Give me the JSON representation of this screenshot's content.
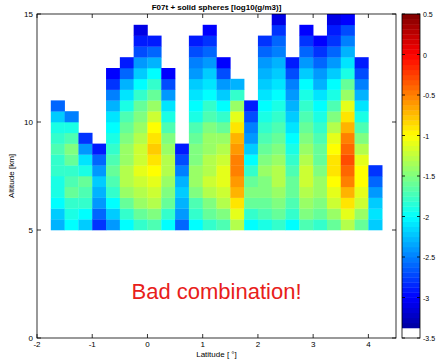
{
  "chart_data": {
    "type": "heatmap",
    "title": "F07t + solid spheres [log10(g/m3)]",
    "xlabel": "Latitude [ °]",
    "ylabel": "Altitude [km]",
    "xlim": [
      -2,
      4.5
    ],
    "ylim": [
      0,
      15
    ],
    "xticks": [
      -2,
      -1,
      0,
      1,
      2,
      3,
      4
    ],
    "yticks": [
      0,
      5,
      10,
      15
    ],
    "colorbar": {
      "lim": [
        -3.5,
        0.5
      ],
      "ticks": [
        0.5,
        0,
        -0.5,
        -1,
        -1.5,
        -2,
        -2.5,
        -3,
        -3.5
      ]
    },
    "annotations": [
      {
        "text": "Bad combination!"
      }
    ],
    "x": [
      -1.625,
      -1.375,
      -1.125,
      -0.875,
      -0.625,
      -0.375,
      -0.125,
      0.125,
      0.375,
      0.625,
      0.875,
      1.125,
      1.375,
      1.625,
      1.875,
      2.125,
      2.375,
      2.625,
      2.875,
      3.125,
      3.375,
      3.625,
      3.875,
      4.125
    ],
    "y": [
      5.25,
      5.75,
      6.25,
      6.75,
      7.25,
      7.75,
      8.25,
      8.75,
      9.25,
      9.75,
      10.25,
      10.75,
      11.25,
      11.75,
      12.25,
      12.75,
      13.25,
      13.75,
      14.25,
      14.75
    ],
    "z": [
      [
        -2.3,
        -2.2,
        -2.0,
        -1.9,
        -1.9,
        -1.8,
        -1.8,
        -1.7,
        -1.8,
        -1.9,
        -2.2,
        -2.6,
        null,
        null,
        null,
        null,
        null,
        null,
        null,
        null
      ],
      [
        -2.0,
        -1.9,
        -1.8,
        -1.6,
        -1.7,
        -1.8,
        -1.6,
        -1.5,
        -1.7,
        -1.9,
        -2.5,
        null,
        null,
        null,
        null,
        null,
        null,
        null,
        null,
        null
      ],
      [
        -2.2,
        -2.0,
        -1.8,
        -1.7,
        -1.6,
        -1.9,
        -2.1,
        -2.4,
        -2.8,
        null,
        null,
        null,
        null,
        null,
        null,
        null,
        null,
        null,
        null,
        null
      ],
      [
        -2.8,
        -2.6,
        -2.4,
        -2.3,
        -2.2,
        -2.4,
        -2.6,
        -2.9,
        null,
        null,
        null,
        null,
        null,
        null,
        null,
        null,
        null,
        null,
        null,
        null
      ],
      [
        -2.4,
        -2.2,
        -2.0,
        -1.8,
        -1.7,
        -1.6,
        -1.7,
        -1.8,
        -1.9,
        -2.0,
        -2.1,
        -2.3,
        -2.5,
        -2.8,
        -3.0,
        null,
        null,
        null,
        null,
        null
      ],
      [
        -2.0,
        -1.8,
        -1.6,
        -1.4,
        -1.3,
        -1.3,
        -1.4,
        -1.4,
        -1.5,
        -1.6,
        -1.7,
        -1.9,
        -2.1,
        -2.3,
        -2.6,
        -2.9,
        null,
        null,
        null,
        null
      ],
      [
        -1.8,
        -1.6,
        -1.4,
        -1.3,
        -1.2,
        -1.1,
        -1.2,
        -1.2,
        -1.3,
        -1.4,
        -1.5,
        -1.6,
        -1.8,
        -2.0,
        -2.2,
        -2.4,
        -2.7,
        -2.9,
        -3.1,
        null
      ],
      [
        -1.7,
        -1.5,
        -1.3,
        -1.2,
        -1.1,
        -1.0,
        -0.9,
        -0.8,
        -0.9,
        -1.0,
        -1.2,
        -1.4,
        -1.6,
        -1.8,
        -2.0,
        -2.3,
        -2.6,
        -2.9,
        null,
        null
      ],
      [
        -2.0,
        -1.8,
        -1.6,
        -1.5,
        -1.4,
        -1.3,
        -1.3,
        -1.4,
        -1.5,
        -1.7,
        -1.9,
        -2.1,
        -2.4,
        -2.7,
        -3.0,
        null,
        null,
        null,
        null,
        null
      ],
      [
        -2.6,
        -2.4,
        -2.3,
        -2.2,
        -2.3,
        -2.5,
        -2.7,
        -2.9,
        null,
        null,
        null,
        null,
        null,
        null,
        null,
        null,
        null,
        null,
        null,
        null
      ],
      [
        -2.0,
        -1.8,
        -1.7,
        -1.5,
        -1.4,
        -1.4,
        -1.5,
        -1.5,
        -1.6,
        -1.7,
        -1.9,
        -2.0,
        -2.1,
        -2.2,
        -2.4,
        -2.5,
        -2.7,
        -2.9,
        null,
        null
      ],
      [
        -1.8,
        -1.6,
        -1.5,
        -1.3,
        -1.2,
        -1.3,
        -1.3,
        -1.4,
        -1.4,
        -1.5,
        -1.7,
        -1.8,
        -2.0,
        -2.1,
        -2.2,
        -2.4,
        -2.6,
        -2.8,
        -3.0,
        null
      ],
      [
        -1.7,
        -1.5,
        -1.3,
        -1.2,
        -1.1,
        -1.1,
        -1.2,
        -1.3,
        -1.4,
        -1.6,
        -1.8,
        -2.0,
        -2.2,
        -2.4,
        -2.7,
        -3.0,
        null,
        null,
        null,
        null
      ],
      [
        -1.3,
        -1.1,
        -0.9,
        -0.7,
        -0.6,
        -0.5,
        -0.5,
        -0.6,
        -0.7,
        -0.9,
        -1.1,
        -1.4,
        -1.8,
        -2.3,
        null,
        null,
        null,
        null,
        null,
        null
      ],
      [
        -2.0,
        -1.8,
        -1.6,
        -1.5,
        -1.6,
        -1.8,
        -2.0,
        -2.2,
        -2.4,
        -2.5,
        -2.7,
        -2.9,
        null,
        null,
        null,
        null,
        null,
        null,
        null,
        null
      ],
      [
        -1.9,
        -1.7,
        -1.6,
        -1.5,
        -1.5,
        -1.4,
        -1.5,
        -1.6,
        -1.7,
        -1.8,
        -1.9,
        -2.0,
        -2.1,
        -2.2,
        -2.3,
        -2.4,
        -2.6,
        -2.8,
        null,
        null
      ],
      [
        -1.8,
        -1.6,
        -1.5,
        -1.4,
        -1.3,
        -1.3,
        -1.4,
        -1.5,
        -1.6,
        -1.7,
        -1.8,
        -1.9,
        -2.0,
        -2.1,
        -2.2,
        -2.3,
        -2.5,
        -2.6,
        -2.8,
        -3.1
      ],
      [
        -2.0,
        -1.8,
        -1.7,
        -1.6,
        -1.6,
        -1.7,
        -1.8,
        -1.9,
        -2.0,
        -2.1,
        -2.2,
        -2.3,
        -2.4,
        -2.5,
        -2.7,
        -2.9,
        null,
        null,
        null,
        null
      ],
      [
        -1.7,
        -1.5,
        -1.4,
        -1.3,
        -1.2,
        -1.2,
        -1.3,
        -1.4,
        -1.5,
        -1.6,
        -1.7,
        -1.8,
        -1.9,
        -2.0,
        -2.2,
        -2.4,
        -2.6,
        -2.8,
        -3.0,
        null
      ],
      [
        -1.8,
        -1.6,
        -1.5,
        -1.4,
        -1.4,
        -1.5,
        -1.6,
        -1.6,
        -1.7,
        -1.8,
        -1.9,
        -2.0,
        -2.1,
        -2.3,
        -2.4,
        -2.6,
        -2.8,
        -3.0,
        null,
        null
      ],
      [
        -1.6,
        -1.4,
        -1.2,
        -1.1,
        -1.0,
        -0.9,
        -0.9,
        -1.0,
        -1.1,
        -1.3,
        -1.5,
        -1.7,
        -1.9,
        -2.0,
        -2.2,
        -2.4,
        -2.6,
        -2.8,
        -2.9,
        -3.1
      ],
      [
        -1.3,
        -1.1,
        -0.9,
        -0.7,
        -0.5,
        -0.4,
        -0.3,
        -0.4,
        -0.5,
        -0.7,
        -0.9,
        -1.1,
        -1.4,
        -1.6,
        -1.9,
        -2.1,
        -2.3,
        -2.5,
        -2.7,
        -3.0
      ],
      [
        -1.6,
        -1.4,
        -1.2,
        -1.1,
        -1.0,
        -1.0,
        -1.1,
        -1.3,
        -1.5,
        -1.7,
        -1.9,
        -2.1,
        -2.3,
        -2.5,
        -2.7,
        -2.9,
        null,
        null,
        null,
        null
      ],
      [
        -2.2,
        -2.1,
        -2.2,
        -2.4,
        -2.6,
        -2.8,
        null,
        null,
        null,
        null,
        null,
        null,
        null,
        null,
        null,
        null,
        null,
        null,
        null,
        null
      ]
    ]
  }
}
